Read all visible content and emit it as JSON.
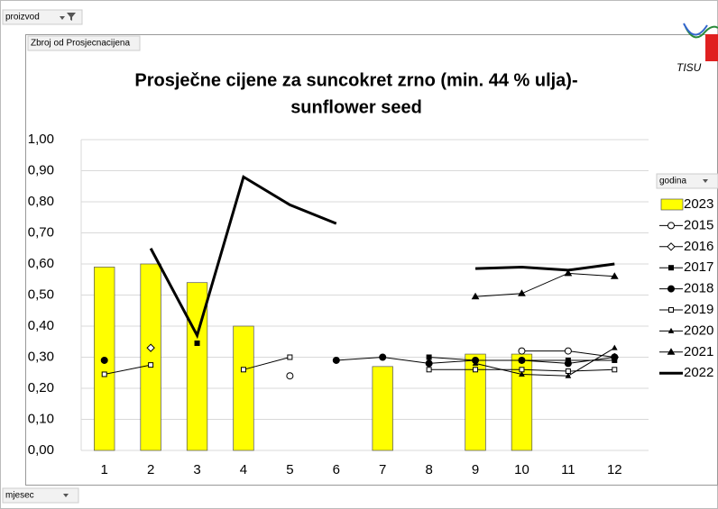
{
  "filters": {
    "top": "proizvod",
    "value_field": "Zbroj od Prosjecnacijena",
    "legend_field": "godina",
    "axis_field": "mjesec"
  },
  "logo_text": "TISU",
  "chart_data": {
    "type": "bar-line",
    "title": [
      "Prosječne cijene za suncokret zrno (min. 44 % ulja)-",
      "sunflower seed"
    ],
    "categories": [
      "1",
      "2",
      "3",
      "4",
      "5",
      "6",
      "7",
      "8",
      "9",
      "10",
      "11",
      "12"
    ],
    "ylim": [
      0,
      1
    ],
    "yticks": [
      {
        "value": 0,
        "label": "0,00"
      },
      {
        "value": 0.1,
        "label": "0,10"
      },
      {
        "value": 0.2,
        "label": "0,20"
      },
      {
        "value": 0.3,
        "label": "0,30"
      },
      {
        "value": 0.4,
        "label": "0,40"
      },
      {
        "value": 0.5,
        "label": "0,50"
      },
      {
        "value": 0.6,
        "label": "0,60"
      },
      {
        "value": 0.7,
        "label": "0,70"
      },
      {
        "value": 0.8,
        "label": "0,80"
      },
      {
        "value": 0.9,
        "label": "0,90"
      },
      {
        "value": 1,
        "label": "1,00"
      }
    ],
    "grid": true,
    "legend": "right",
    "series": [
      {
        "name": "2023",
        "kind": "bar",
        "color": "#ffff00",
        "values": [
          0.59,
          0.6,
          0.54,
          0.4,
          null,
          null,
          0.27,
          null,
          0.31,
          0.31,
          null,
          null
        ]
      },
      {
        "name": "2015",
        "kind": "line",
        "marker": "circle-open",
        "color": "#000000",
        "values": [
          null,
          null,
          null,
          null,
          0.24,
          null,
          null,
          null,
          null,
          0.32,
          0.32,
          0.3
        ]
      },
      {
        "name": "2016",
        "kind": "line",
        "marker": "diamond-open",
        "color": "#000000",
        "values": [
          null,
          0.33,
          null,
          null,
          null,
          null,
          null,
          null,
          null,
          null,
          null,
          0.3
        ]
      },
      {
        "name": "2017",
        "kind": "line",
        "marker": "square-filled",
        "color": "#000000",
        "values": [
          null,
          null,
          0.345,
          null,
          null,
          null,
          null,
          0.3,
          0.29,
          0.29,
          0.29,
          0.29
        ]
      },
      {
        "name": "2018",
        "kind": "line",
        "marker": "circle-filled",
        "color": "#000000",
        "values": [
          0.29,
          null,
          null,
          null,
          null,
          0.29,
          0.3,
          0.28,
          0.29,
          0.29,
          0.28,
          0.3
        ]
      },
      {
        "name": "2019",
        "kind": "line",
        "marker": "square-open",
        "color": "#000000",
        "values": [
          0.245,
          0.275,
          null,
          0.26,
          0.3,
          null,
          null,
          0.26,
          0.26,
          0.26,
          0.255,
          0.26
        ]
      },
      {
        "name": "2020",
        "kind": "line",
        "marker": "triangle-small",
        "color": "#000000",
        "values": [
          null,
          null,
          null,
          null,
          null,
          null,
          null,
          null,
          0.28,
          0.245,
          0.24,
          0.33
        ]
      },
      {
        "name": "2021",
        "kind": "line",
        "marker": "triangle",
        "color": "#000000",
        "values": [
          null,
          null,
          null,
          null,
          null,
          null,
          null,
          null,
          0.495,
          0.505,
          0.57,
          0.56
        ]
      },
      {
        "name": "2022",
        "kind": "line",
        "marker": "none",
        "width": 3,
        "color": "#000000",
        "values": [
          null,
          0.65,
          0.37,
          0.88,
          0.79,
          0.73,
          null,
          null,
          0.585,
          0.59,
          0.58,
          0.6
        ]
      }
    ]
  }
}
